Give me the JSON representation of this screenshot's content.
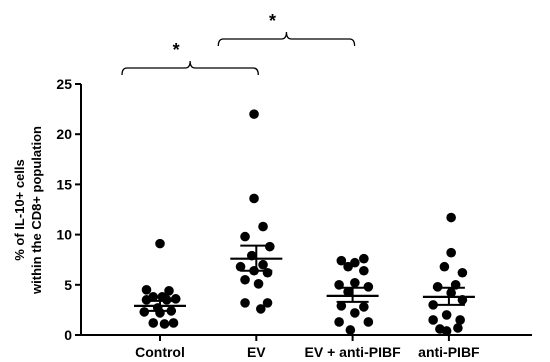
{
  "chart_data": {
    "type": "scatter",
    "ylabel_lines": [
      "% of IL-10+ cells",
      "within the CD8+ population"
    ],
    "ylim": [
      0,
      25
    ],
    "yticks": [
      0,
      5,
      10,
      15,
      20,
      25
    ],
    "ytick_labels": [
      "0",
      "5",
      "10",
      "15",
      "20",
      "25"
    ],
    "categories": [
      "Control",
      "EV",
      "EV + anti-PIBF",
      "anti-PIBF"
    ],
    "groups": [
      {
        "category": "Control",
        "points": [
          [
            0,
            9.1
          ],
          [
            -0.3,
            4.5
          ],
          [
            0.2,
            4.4
          ],
          [
            -0.15,
            3.8
          ],
          [
            0.05,
            3.8
          ],
          [
            -0.3,
            3.5
          ],
          [
            0.15,
            3.5
          ],
          [
            0.35,
            3.6
          ],
          [
            -0.05,
            2.7
          ],
          [
            0.25,
            2.4
          ],
          [
            -0.35,
            2.3
          ],
          [
            0.0,
            2.2
          ],
          [
            -0.15,
            1.2
          ],
          [
            0.1,
            1.1
          ],
          [
            0.3,
            1.2
          ]
        ],
        "mean": 2.9,
        "sem_low": 2.4,
        "sem_high": 3.4
      },
      {
        "category": "EV",
        "points": [
          [
            -0.05,
            22.0
          ],
          [
            -0.05,
            13.6
          ],
          [
            0.15,
            10.8
          ],
          [
            -0.25,
            9.8
          ],
          [
            0.3,
            8.8
          ],
          [
            -0.1,
            7.9
          ],
          [
            -0.35,
            6.8
          ],
          [
            0.15,
            7.0
          ],
          [
            -0.05,
            6.4
          ],
          [
            0.25,
            6.2
          ],
          [
            -0.25,
            5.5
          ],
          [
            0.05,
            5.1
          ],
          [
            0.25,
            3.2
          ],
          [
            -0.25,
            3.2
          ],
          [
            0.1,
            2.6
          ]
        ],
        "mean": 7.6,
        "sem_low": 6.4,
        "sem_high": 8.9
      },
      {
        "category": "EV + anti-PIBF",
        "points": [
          [
            0.25,
            7.6
          ],
          [
            -0.25,
            7.4
          ],
          [
            0.05,
            7.2
          ],
          [
            -0.1,
            6.8
          ],
          [
            0.25,
            6.4
          ],
          [
            -0.3,
            5.0
          ],
          [
            0.05,
            5.2
          ],
          [
            0.35,
            4.8
          ],
          [
            -0.1,
            4.3
          ],
          [
            -0.25,
            2.9
          ],
          [
            0.25,
            2.8
          ],
          [
            0.05,
            2.2
          ],
          [
            -0.3,
            1.3
          ],
          [
            0.35,
            1.3
          ],
          [
            -0.05,
            0.5
          ]
        ],
        "mean": 3.9,
        "sem_low": 3.3,
        "sem_high": 4.7
      },
      {
        "category": "anti-PIBF",
        "points": [
          [
            0.05,
            11.7
          ],
          [
            0.05,
            8.2
          ],
          [
            -0.1,
            6.8
          ],
          [
            0.3,
            6.2
          ],
          [
            0.15,
            5.0
          ],
          [
            -0.25,
            4.8
          ],
          [
            0.05,
            4.2
          ],
          [
            0.3,
            3.5
          ],
          [
            -0.35,
            3.0
          ],
          [
            -0.05,
            2.0
          ],
          [
            -0.35,
            1.5
          ],
          [
            0.25,
            1.5
          ],
          [
            -0.2,
            0.6
          ],
          [
            0.2,
            0.7
          ],
          [
            -0.05,
            0.4
          ]
        ],
        "mean": 3.8,
        "sem_low": 3.0,
        "sem_high": 4.7
      }
    ],
    "significance": [
      {
        "from": "Control",
        "to": "EV",
        "label": "*"
      },
      {
        "from": "EV",
        "to": "EV + anti-PIBF",
        "label": "*"
      }
    ]
  }
}
